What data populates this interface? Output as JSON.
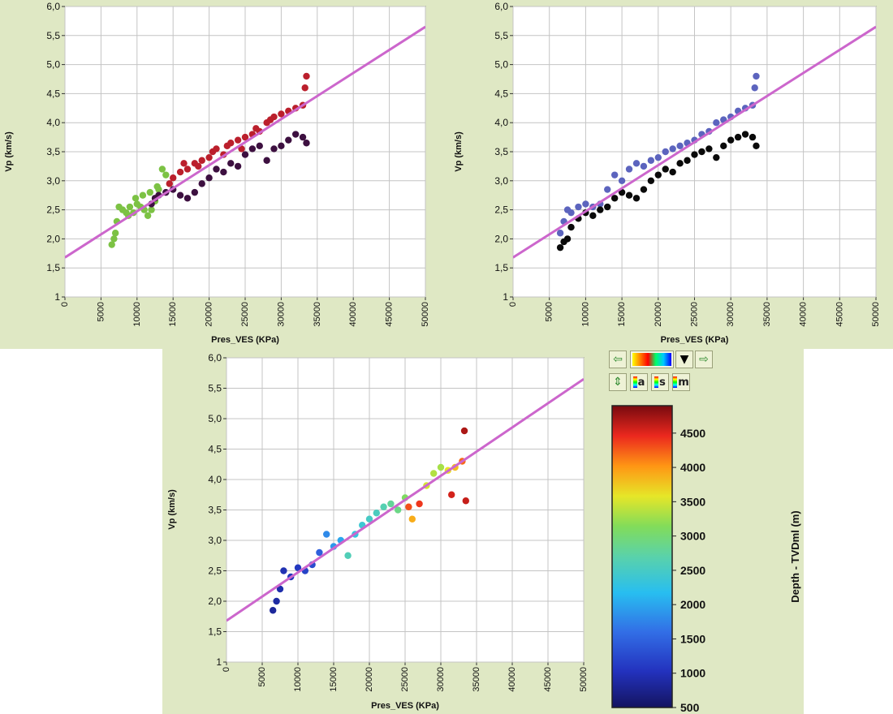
{
  "colors": {
    "panel_bg": "#dfe8c4",
    "plot_bg": "#ffffff",
    "grid": "#c4c4c4",
    "trend": "#cc66cc",
    "deep_set_panel1": "#bb1f2c",
    "shallow_set_panel1": "#7cc244",
    "other_set_panel1": "#3d1040",
    "blue_set_panel2": "#5c64be",
    "black_set_panel2": "#0a0a0a"
  },
  "colorbar": {
    "title": "Depth - TVDml (m)",
    "ticks": [
      "4500",
      "4000",
      "3500",
      "3000",
      "2500",
      "2000",
      "1500",
      "1000",
      "500"
    ]
  },
  "toolbar": {
    "prev_icon": "arrow-left-icon",
    "next_icon": "arrow-right-icon",
    "dropdown_icon": "triangle-down-icon",
    "swap_icon": "arrow-updown-icon",
    "btn_a": "a",
    "btn_s": "s",
    "btn_m": "m"
  },
  "chart_data": [
    {
      "type": "scatter",
      "title": "",
      "xlabel": "Pres_VES  (KPa)",
      "ylabel": "Vp  (km/s)",
      "xlim": [
        0,
        50000
      ],
      "ylim": [
        1,
        6
      ],
      "x_ticks": [
        "0",
        "5000",
        "10000",
        "15000",
        "20000",
        "25000",
        "30000",
        "35000",
        "40000",
        "45000",
        "50000"
      ],
      "y_ticks": [
        "1",
        "1,5",
        "2,0",
        "2,5",
        "3,0",
        "3,5",
        "4,0",
        "4,5",
        "5,0",
        "5,5",
        "6,0"
      ],
      "trend_line": {
        "x": [
          0,
          50000
        ],
        "y": [
          1.68,
          5.65
        ]
      },
      "coloring": "categorical",
      "series": [
        {
          "name": "green",
          "color": "#7cc244",
          "points": [
            [
              6500,
              1.9
            ],
            [
              6800,
              2.0
            ],
            [
              7000,
              2.1
            ],
            [
              7200,
              2.3
            ],
            [
              7500,
              2.55
            ],
            [
              8000,
              2.5
            ],
            [
              8500,
              2.45
            ],
            [
              9000,
              2.55
            ],
            [
              9500,
              2.45
            ],
            [
              10000,
              2.6
            ],
            [
              10500,
              2.55
            ],
            [
              11000,
              2.5
            ],
            [
              11500,
              2.4
            ],
            [
              12000,
              2.5
            ],
            [
              12500,
              2.65
            ],
            [
              13000,
              2.85
            ],
            [
              13500,
              3.2
            ],
            [
              14000,
              3.1
            ],
            [
              12800,
              2.9
            ],
            [
              11800,
              2.8
            ],
            [
              10800,
              2.75
            ],
            [
              9800,
              2.7
            ],
            [
              8800,
              2.4
            ]
          ]
        },
        {
          "name": "red",
          "color": "#bb1f2c",
          "points": [
            [
              14500,
              2.95
            ],
            [
              15000,
              3.05
            ],
            [
              16000,
              3.15
            ],
            [
              16500,
              3.3
            ],
            [
              17000,
              3.2
            ],
            [
              18000,
              3.3
            ],
            [
              18500,
              3.25
            ],
            [
              19000,
              3.35
            ],
            [
              20000,
              3.4
            ],
            [
              20500,
              3.5
            ],
            [
              21000,
              3.55
            ],
            [
              22000,
              3.45
            ],
            [
              22500,
              3.6
            ],
            [
              23000,
              3.65
            ],
            [
              24000,
              3.7
            ],
            [
              24500,
              3.55
            ],
            [
              25000,
              3.75
            ],
            [
              26000,
              3.8
            ],
            [
              26500,
              3.9
            ],
            [
              27000,
              3.85
            ],
            [
              28000,
              4.0
            ],
            [
              28500,
              4.05
            ],
            [
              29000,
              4.1
            ],
            [
              30000,
              4.15
            ],
            [
              31000,
              4.2
            ],
            [
              32000,
              4.25
            ],
            [
              33000,
              4.3
            ],
            [
              33500,
              4.8
            ],
            [
              33300,
              4.6
            ]
          ]
        },
        {
          "name": "dark",
          "color": "#3d1040",
          "points": [
            [
              12000,
              2.6
            ],
            [
              12500,
              2.7
            ],
            [
              13000,
              2.75
            ],
            [
              14000,
              2.8
            ],
            [
              15000,
              2.85
            ],
            [
              16000,
              2.75
            ],
            [
              17000,
              2.7
            ],
            [
              18000,
              2.8
            ],
            [
              19000,
              2.95
            ],
            [
              20000,
              3.05
            ],
            [
              21000,
              3.2
            ],
            [
              22000,
              3.15
            ],
            [
              23000,
              3.3
            ],
            [
              24000,
              3.25
            ],
            [
              25000,
              3.45
            ],
            [
              26000,
              3.55
            ],
            [
              27000,
              3.6
            ],
            [
              28000,
              3.35
            ],
            [
              29000,
              3.55
            ],
            [
              30000,
              3.6
            ],
            [
              31000,
              3.7
            ],
            [
              32000,
              3.8
            ],
            [
              33000,
              3.75
            ],
            [
              33500,
              3.65
            ]
          ]
        }
      ]
    },
    {
      "type": "scatter",
      "title": "",
      "xlabel": "Pres_VES  (KPa)",
      "ylabel": "Vp  (km/s)",
      "xlim": [
        0,
        50000
      ],
      "ylim": [
        1,
        6
      ],
      "x_ticks": [
        "0",
        "5000",
        "10000",
        "15000",
        "20000",
        "25000",
        "30000",
        "35000",
        "40000",
        "45000",
        "50000"
      ],
      "y_ticks": [
        "1",
        "1,5",
        "2,0",
        "2,5",
        "3,0",
        "3,5",
        "4,0",
        "4,5",
        "5,0",
        "5,5",
        "6,0"
      ],
      "trend_line": {
        "x": [
          0,
          50000
        ],
        "y": [
          1.68,
          5.65
        ]
      },
      "coloring": "categorical",
      "series": [
        {
          "name": "blue",
          "color": "#5c64be",
          "points": [
            [
              6500,
              2.1
            ],
            [
              7000,
              2.3
            ],
            [
              7500,
              2.5
            ],
            [
              8000,
              2.45
            ],
            [
              9000,
              2.55
            ],
            [
              10000,
              2.6
            ],
            [
              11000,
              2.55
            ],
            [
              12000,
              2.6
            ],
            [
              13000,
              2.85
            ],
            [
              14000,
              3.1
            ],
            [
              15000,
              3.0
            ],
            [
              16000,
              3.2
            ],
            [
              17000,
              3.3
            ],
            [
              18000,
              3.25
            ],
            [
              19000,
              3.35
            ],
            [
              20000,
              3.4
            ],
            [
              21000,
              3.5
            ],
            [
              22000,
              3.55
            ],
            [
              23000,
              3.6
            ],
            [
              24000,
              3.65
            ],
            [
              25000,
              3.7
            ],
            [
              26000,
              3.8
            ],
            [
              27000,
              3.85
            ],
            [
              28000,
              4.0
            ],
            [
              29000,
              4.05
            ],
            [
              30000,
              4.1
            ],
            [
              31000,
              4.2
            ],
            [
              32000,
              4.25
            ],
            [
              33000,
              4.3
            ],
            [
              33500,
              4.8
            ],
            [
              33300,
              4.6
            ]
          ]
        },
        {
          "name": "black",
          "color": "#0a0a0a",
          "points": [
            [
              6500,
              1.85
            ],
            [
              7000,
              1.95
            ],
            [
              7500,
              2.0
            ],
            [
              8000,
              2.2
            ],
            [
              9000,
              2.35
            ],
            [
              10000,
              2.45
            ],
            [
              11000,
              2.4
            ],
            [
              12000,
              2.5
            ],
            [
              13000,
              2.55
            ],
            [
              14000,
              2.7
            ],
            [
              15000,
              2.8
            ],
            [
              16000,
              2.75
            ],
            [
              17000,
              2.7
            ],
            [
              18000,
              2.85
            ],
            [
              19000,
              3.0
            ],
            [
              20000,
              3.1
            ],
            [
              21000,
              3.2
            ],
            [
              22000,
              3.15
            ],
            [
              23000,
              3.3
            ],
            [
              24000,
              3.35
            ],
            [
              25000,
              3.45
            ],
            [
              26000,
              3.5
            ],
            [
              27000,
              3.55
            ],
            [
              28000,
              3.4
            ],
            [
              29000,
              3.6
            ],
            [
              30000,
              3.7
            ],
            [
              31000,
              3.75
            ],
            [
              32000,
              3.8
            ],
            [
              33000,
              3.75
            ],
            [
              33500,
              3.6
            ]
          ]
        }
      ]
    },
    {
      "type": "scatter",
      "title": "",
      "xlabel": "Pres_VES  (KPa)",
      "ylabel": "Vp  (km/s)",
      "xlim": [
        0,
        50000
      ],
      "ylim": [
        1,
        6
      ],
      "x_ticks": [
        "0",
        "5000",
        "10000",
        "15000",
        "20000",
        "25000",
        "30000",
        "35000",
        "40000",
        "45000",
        "50000"
      ],
      "y_ticks": [
        "1",
        "1,5",
        "2,0",
        "2,5",
        "3,0",
        "3,5",
        "4,0",
        "4,5",
        "5,0",
        "5,5",
        "6,0"
      ],
      "trend_line": {
        "x": [
          0,
          50000
        ],
        "y": [
          1.68,
          5.65
        ]
      },
      "coloring": "depth",
      "color_range": [
        500,
        4900
      ],
      "points": [
        {
          "x": 6500,
          "y": 1.85,
          "depth": 800
        },
        {
          "x": 7000,
          "y": 2.0,
          "depth": 850
        },
        {
          "x": 7500,
          "y": 2.2,
          "depth": 900
        },
        {
          "x": 8000,
          "y": 2.5,
          "depth": 950
        },
        {
          "x": 9000,
          "y": 2.4,
          "depth": 1000
        },
        {
          "x": 10000,
          "y": 2.55,
          "depth": 1050
        },
        {
          "x": 11000,
          "y": 2.5,
          "depth": 1150
        },
        {
          "x": 12000,
          "y": 2.6,
          "depth": 1250
        },
        {
          "x": 13000,
          "y": 2.8,
          "depth": 1450
        },
        {
          "x": 14000,
          "y": 3.1,
          "depth": 1800
        },
        {
          "x": 15000,
          "y": 2.9,
          "depth": 1900
        },
        {
          "x": 16000,
          "y": 3.0,
          "depth": 2000
        },
        {
          "x": 17000,
          "y": 2.75,
          "depth": 2600
        },
        {
          "x": 18000,
          "y": 3.1,
          "depth": 2300
        },
        {
          "x": 19000,
          "y": 3.25,
          "depth": 2400
        },
        {
          "x": 20000,
          "y": 3.35,
          "depth": 2500
        },
        {
          "x": 21000,
          "y": 3.45,
          "depth": 2550
        },
        {
          "x": 22000,
          "y": 3.55,
          "depth": 2650
        },
        {
          "x": 23000,
          "y": 3.6,
          "depth": 2800
        },
        {
          "x": 24000,
          "y": 3.5,
          "depth": 2900
        },
        {
          "x": 25000,
          "y": 3.7,
          "depth": 3100
        },
        {
          "x": 25500,
          "y": 3.55,
          "depth": 4300
        },
        {
          "x": 26000,
          "y": 3.35,
          "depth": 3900
        },
        {
          "x": 27000,
          "y": 3.6,
          "depth": 4400
        },
        {
          "x": 28000,
          "y": 3.9,
          "depth": 3500
        },
        {
          "x": 29000,
          "y": 4.1,
          "depth": 3350
        },
        {
          "x": 30000,
          "y": 4.2,
          "depth": 3300
        },
        {
          "x": 31000,
          "y": 4.15,
          "depth": 3600
        },
        {
          "x": 31500,
          "y": 3.75,
          "depth": 4550
        },
        {
          "x": 32000,
          "y": 4.2,
          "depth": 3800
        },
        {
          "x": 33000,
          "y": 4.3,
          "depth": 4200
        },
        {
          "x": 33500,
          "y": 3.65,
          "depth": 4600
        },
        {
          "x": 33300,
          "y": 4.8,
          "depth": 4700
        }
      ]
    }
  ]
}
